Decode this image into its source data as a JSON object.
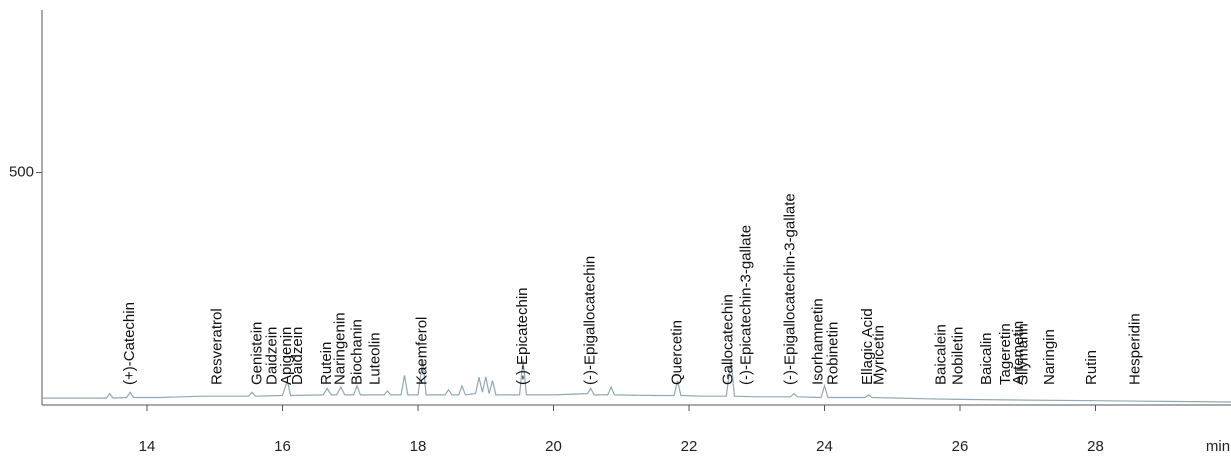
{
  "chart_data": {
    "type": "line",
    "xlabel": "min",
    "xlim": [
      12.45,
      30.0
    ],
    "xticks": [
      14,
      16,
      18,
      20,
      22,
      24,
      26,
      28
    ],
    "ylim": [
      104,
      750
    ],
    "yticks": [
      500
    ],
    "series": [
      {
        "color": "#8fa9b8",
        "x": [
          12.45,
          13.0,
          13.4,
          13.45,
          13.5,
          13.7,
          13.75,
          13.8,
          14.2,
          14.5,
          14.8,
          15.3,
          15.5,
          15.55,
          15.6,
          16.0,
          16.07,
          16.12,
          16.6,
          16.66,
          16.72,
          16.8,
          16.86,
          16.92,
          17.05,
          17.1,
          17.15,
          17.5,
          17.55,
          17.6,
          17.75,
          17.8,
          17.85,
          18.0,
          18.07,
          18.12,
          18.4,
          18.45,
          18.5,
          18.6,
          18.65,
          18.7,
          18.85,
          18.9,
          18.95,
          19.0,
          19.05,
          19.1,
          19.15,
          19.5,
          19.55,
          19.6,
          20.0,
          20.5,
          20.55,
          20.6,
          20.8,
          20.85,
          20.9,
          21.5,
          21.78,
          21.83,
          21.88,
          22.2,
          22.55,
          22.62,
          22.67,
          23.0,
          23.5,
          23.55,
          23.6,
          23.95,
          24.0,
          24.05,
          24.6,
          24.65,
          24.7,
          25.5,
          26.0,
          27.0,
          28.0,
          29.0,
          30.0
        ],
        "values": [
          153,
          153,
          153,
          160,
          153,
          154,
          162,
          154,
          154,
          155,
          156,
          156,
          156,
          162,
          156,
          157,
          180,
          157,
          158,
          168,
          158,
          158,
          170,
          158,
          158,
          172,
          158,
          158,
          164,
          158,
          158,
          188,
          158,
          158,
          212,
          158,
          158,
          166,
          158,
          158,
          172,
          158,
          160,
          185,
          162,
          186,
          160,
          180,
          158,
          158,
          212,
          158,
          158,
          160,
          168,
          158,
          158,
          170,
          158,
          157,
          157,
          180,
          157,
          156,
          156,
          212,
          156,
          155,
          155,
          160,
          155,
          154,
          172,
          154,
          154,
          158,
          154,
          152,
          151,
          150,
          149,
          148,
          147
        ]
      }
    ],
    "annotations": [
      {
        "text": "(+)-Catechin",
        "x": 13.75
      },
      {
        "text": "Resveratrol",
        "x": 15.04
      },
      {
        "text": "Genistein",
        "x": 15.63
      },
      {
        "text": "Daidzein",
        "x": 15.85
      },
      {
        "text": "Apigenin",
        "x": 16.07
      },
      {
        "text": "Daidzein",
        "x": 16.23
      },
      {
        "text": "Rutein",
        "x": 16.66
      },
      {
        "text": "Naringenin",
        "x": 16.86
      },
      {
        "text": "Biochanin",
        "x": 17.11
      },
      {
        "text": "Luteolin",
        "x": 17.37
      },
      {
        "text": "Kaemferol",
        "x": 18.07
      },
      {
        "text": "(-)-Epicatechin",
        "x": 19.55
      },
      {
        "text": "(-)-Epigallocatechin",
        "x": 20.55
      },
      {
        "text": "Quercetin",
        "x": 21.83
      },
      {
        "text": "Gallocatechin",
        "x": 22.58
      },
      {
        "text": "(-)-Epicatechin-3-gallate",
        "x": 22.85
      },
      {
        "text": "(-)-Epigallocatechin-3-gallate",
        "x": 23.5
      },
      {
        "text": "Isorhamnetin",
        "x": 23.91
      },
      {
        "text": "Robinetin",
        "x": 24.13
      },
      {
        "text": "Ellagic Acid",
        "x": 24.64
      },
      {
        "text": "Myricetin",
        "x": 24.81
      },
      {
        "text": "Baicalein",
        "x": 25.73
      },
      {
        "text": "Nobiletin",
        "x": 25.98
      },
      {
        "text": "Baicalin",
        "x": 26.4
      },
      {
        "text": "Tageretin",
        "x": 26.68
      },
      {
        "text": "Artemetin",
        "x": 26.87
      },
      {
        "text": "Silymarin",
        "x": 26.94
      },
      {
        "text": "Naringin",
        "x": 27.33
      },
      {
        "text": "Rutin",
        "x": 27.95
      },
      {
        "text": "Hesperidin",
        "x": 28.59
      }
    ]
  }
}
